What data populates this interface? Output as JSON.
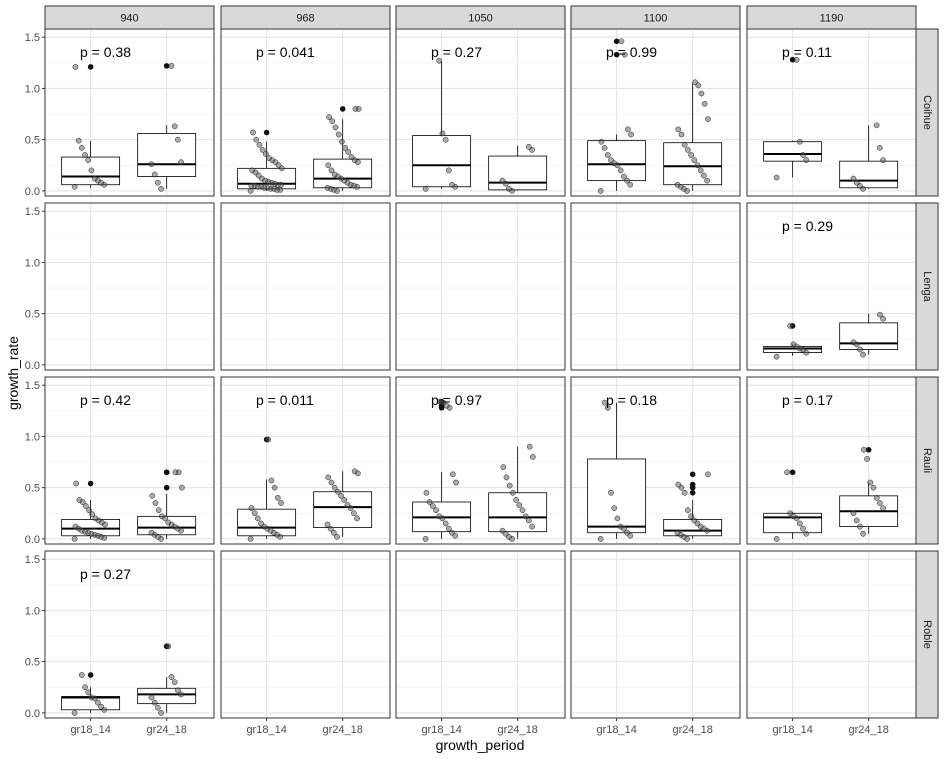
{
  "chart_data": {
    "type": "boxplot",
    "facet_cols": [
      "940",
      "968",
      "1050",
      "1100",
      "1190"
    ],
    "facet_rows": [
      "Coihue",
      "Lenga",
      "Rauli",
      "Roble"
    ],
    "categories": [
      "gr18_14",
      "gr24_18"
    ],
    "xlabel": "growth_period",
    "ylabel": "growth_rate",
    "ylim": [
      -0.05,
      1.58
    ],
    "yticks": [
      0.0,
      0.5,
      1.0,
      1.5
    ],
    "yticklabels": [
      "0.0",
      "0.5",
      "1.0",
      "1.5"
    ],
    "grid": true,
    "colors": {
      "strip": "#d9d9d9",
      "point": "#555555",
      "box": "#000000"
    },
    "panels": [
      {
        "row": "Coihue",
        "col": "940",
        "p": "p = 0.38",
        "boxes": [
          {
            "q1": 0.06,
            "median": 0.14,
            "q3": 0.33,
            "low": 0.03,
            "high": 0.49,
            "outliers": [
              1.21
            ],
            "points": [
              0.04,
              0.06,
              0.08,
              0.1,
              0.12,
              0.2,
              0.3,
              0.35,
              0.42,
              0.49,
              1.21
            ]
          },
          {
            "q1": 0.14,
            "median": 0.26,
            "q3": 0.56,
            "low": 0.02,
            "high": 0.64,
            "outliers": [
              1.22
            ],
            "points": [
              0.02,
              0.08,
              0.16,
              0.26,
              0.28,
              0.5,
              0.63,
              1.22
            ]
          }
        ]
      },
      {
        "row": "Coihue",
        "col": "968",
        "p": "p = 0.041",
        "boxes": [
          {
            "q1": 0.02,
            "median": 0.07,
            "q3": 0.22,
            "low": 0.0,
            "high": 0.48,
            "outliers": [
              0.57
            ],
            "points": [
              0.0,
              0.01,
              0.01,
              0.02,
              0.02,
              0.03,
              0.03,
              0.04,
              0.04,
              0.05,
              0.05,
              0.06,
              0.06,
              0.07,
              0.08,
              0.09,
              0.1,
              0.12,
              0.15,
              0.18,
              0.2,
              0.22,
              0.25,
              0.28,
              0.3,
              0.32,
              0.36,
              0.4,
              0.45,
              0.5,
              0.57
            ]
          },
          {
            "q1": 0.03,
            "median": 0.12,
            "q3": 0.31,
            "low": 0.0,
            "high": 0.7,
            "outliers": [
              0.8
            ],
            "points": [
              0.0,
              0.01,
              0.02,
              0.03,
              0.04,
              0.05,
              0.06,
              0.08,
              0.1,
              0.12,
              0.14,
              0.16,
              0.2,
              0.25,
              0.28,
              0.3,
              0.33,
              0.38,
              0.42,
              0.48,
              0.55,
              0.62,
              0.68,
              0.72,
              0.8,
              0.8
            ]
          }
        ]
      },
      {
        "row": "Coihue",
        "col": "1050",
        "p": "p = 0.27",
        "boxes": [
          {
            "q1": 0.04,
            "median": 0.25,
            "q3": 0.54,
            "low": 0.02,
            "high": 1.27,
            "outliers": [],
            "points": [
              0.02,
              0.04,
              0.06,
              0.2,
              0.5,
              0.56,
              1.27
            ]
          },
          {
            "q1": 0.01,
            "median": 0.08,
            "q3": 0.34,
            "low": 0.0,
            "high": 0.44,
            "outliers": [],
            "points": [
              0.0,
              0.02,
              0.07,
              0.1,
              0.4,
              0.43
            ]
          }
        ]
      },
      {
        "row": "Coihue",
        "col": "1100",
        "p": "p = 0.99",
        "boxes": [
          {
            "q1": 0.1,
            "median": 0.26,
            "q3": 0.49,
            "low": 0.0,
            "high": 0.55,
            "outliers": [
              1.33,
              1.46
            ],
            "points": [
              0.0,
              0.06,
              0.1,
              0.14,
              0.2,
              0.25,
              0.27,
              0.3,
              0.35,
              0.42,
              0.48,
              0.55,
              0.6,
              1.33,
              1.46
            ]
          },
          {
            "q1": 0.06,
            "median": 0.24,
            "q3": 0.47,
            "low": 0.0,
            "high": 1.05,
            "outliers": [],
            "points": [
              0.0,
              0.02,
              0.04,
              0.06,
              0.1,
              0.15,
              0.2,
              0.25,
              0.3,
              0.35,
              0.4,
              0.45,
              0.55,
              0.6,
              0.7,
              0.85,
              0.95,
              1.03,
              1.06
            ]
          }
        ]
      },
      {
        "row": "Coihue",
        "col": "1190",
        "p": "p = 0.11",
        "boxes": [
          {
            "q1": 0.29,
            "median": 0.36,
            "q3": 0.48,
            "low": 0.13,
            "high": 0.49,
            "outliers": [
              1.28
            ],
            "points": [
              0.13,
              0.3,
              0.35,
              0.48,
              1.28
            ]
          },
          {
            "q1": 0.03,
            "median": 0.1,
            "q3": 0.29,
            "low": 0.02,
            "high": 0.64,
            "outliers": [],
            "points": [
              0.02,
              0.05,
              0.08,
              0.12,
              0.3,
              0.42,
              0.64
            ]
          }
        ]
      },
      {
        "row": "Lenga",
        "col": "1190",
        "p": "p = 0.29",
        "boxes": [
          {
            "q1": 0.12,
            "median": 0.16,
            "q3": 0.18,
            "low": 0.09,
            "high": 0.2,
            "outliers": [
              0.38
            ],
            "points": [
              0.08,
              0.12,
              0.15,
              0.16,
              0.18,
              0.2,
              0.38
            ]
          },
          {
            "q1": 0.15,
            "median": 0.21,
            "q3": 0.41,
            "low": 0.1,
            "high": 0.5,
            "outliers": [],
            "points": [
              0.1,
              0.15,
              0.2,
              0.22,
              0.45,
              0.49
            ]
          }
        ]
      },
      {
        "row": "Rauli",
        "col": "940",
        "p": "p = 0.42",
        "boxes": [
          {
            "q1": 0.03,
            "median": 0.1,
            "q3": 0.19,
            "low": 0.0,
            "high": 0.38,
            "outliers": [
              0.54
            ],
            "points": [
              0.0,
              0.01,
              0.02,
              0.03,
              0.04,
              0.05,
              0.06,
              0.07,
              0.08,
              0.1,
              0.12,
              0.14,
              0.16,
              0.18,
              0.2,
              0.24,
              0.28,
              0.32,
              0.36,
              0.38,
              0.54
            ]
          },
          {
            "q1": 0.04,
            "median": 0.11,
            "q3": 0.22,
            "low": 0.0,
            "high": 0.44,
            "outliers": [
              0.5,
              0.65,
              0.65
            ],
            "points": [
              0.0,
              0.02,
              0.04,
              0.06,
              0.08,
              0.1,
              0.12,
              0.14,
              0.16,
              0.2,
              0.22,
              0.28,
              0.35,
              0.42,
              0.5,
              0.65,
              0.65
            ]
          }
        ]
      },
      {
        "row": "Rauli",
        "col": "968",
        "p": "p = 0.011",
        "boxes": [
          {
            "q1": 0.03,
            "median": 0.11,
            "q3": 0.29,
            "low": 0.0,
            "high": 0.58,
            "outliers": [
              0.97
            ],
            "points": [
              0.0,
              0.02,
              0.04,
              0.06,
              0.08,
              0.1,
              0.12,
              0.15,
              0.2,
              0.25,
              0.3,
              0.35,
              0.4,
              0.5,
              0.57,
              0.97
            ]
          },
          {
            "q1": 0.11,
            "median": 0.31,
            "q3": 0.46,
            "low": 0.02,
            "high": 0.66,
            "outliers": [],
            "points": [
              0.02,
              0.06,
              0.1,
              0.14,
              0.2,
              0.25,
              0.3,
              0.33,
              0.38,
              0.42,
              0.46,
              0.5,
              0.55,
              0.6,
              0.64,
              0.66
            ]
          }
        ]
      },
      {
        "row": "Rauli",
        "col": "1050",
        "p": "p = 0.97",
        "boxes": [
          {
            "q1": 0.07,
            "median": 0.21,
            "q3": 0.36,
            "low": 0.0,
            "high": 0.65,
            "outliers": [
              1.28,
              1.3,
              1.33,
              1.34
            ],
            "points": [
              0.0,
              0.03,
              0.06,
              0.1,
              0.15,
              0.2,
              0.22,
              0.28,
              0.32,
              0.36,
              0.45,
              0.55,
              0.63,
              1.28,
              1.3,
              1.33,
              1.34
            ]
          },
          {
            "q1": 0.07,
            "median": 0.21,
            "q3": 0.45,
            "low": 0.0,
            "high": 0.9,
            "outliers": [],
            "points": [
              0.0,
              0.02,
              0.05,
              0.08,
              0.12,
              0.18,
              0.22,
              0.28,
              0.33,
              0.38,
              0.45,
              0.52,
              0.6,
              0.7,
              0.8,
              0.9
            ]
          }
        ]
      },
      {
        "row": "Rauli",
        "col": "1100",
        "p": "p = 0.18",
        "boxes": [
          {
            "q1": 0.06,
            "median": 0.12,
            "q3": 0.78,
            "low": 0.0,
            "high": 1.33,
            "outliers": [],
            "points": [
              0.0,
              0.03,
              0.06,
              0.1,
              0.12,
              0.2,
              0.3,
              0.45,
              1.28,
              1.33
            ]
          },
          {
            "q1": 0.03,
            "median": 0.08,
            "q3": 0.19,
            "low": 0.0,
            "high": 0.38,
            "outliers": [
              0.45,
              0.5,
              0.53,
              0.63
            ],
            "points": [
              0.0,
              0.02,
              0.04,
              0.06,
              0.08,
              0.1,
              0.12,
              0.15,
              0.18,
              0.22,
              0.28,
              0.45,
              0.5,
              0.53,
              0.63
            ]
          }
        ]
      },
      {
        "row": "Rauli",
        "col": "1190",
        "p": "p = 0.17",
        "boxes": [
          {
            "q1": 0.06,
            "median": 0.21,
            "q3": 0.25,
            "low": 0.0,
            "high": 0.26,
            "outliers": [
              0.65
            ],
            "points": [
              0.0,
              0.05,
              0.1,
              0.15,
              0.2,
              0.22,
              0.25,
              0.65
            ]
          },
          {
            "q1": 0.12,
            "median": 0.27,
            "q3": 0.42,
            "low": 0.05,
            "high": 0.55,
            "outliers": [
              0.87
            ],
            "points": [
              0.05,
              0.12,
              0.18,
              0.25,
              0.3,
              0.35,
              0.4,
              0.5,
              0.55,
              0.78,
              0.87
            ]
          }
        ]
      },
      {
        "row": "Roble",
        "col": "940",
        "p": "p = 0.27",
        "boxes": [
          {
            "q1": 0.03,
            "median": 0.15,
            "q3": 0.16,
            "low": 0.0,
            "high": 0.25,
            "outliers": [
              0.37
            ],
            "points": [
              0.0,
              0.03,
              0.06,
              0.1,
              0.14,
              0.15,
              0.2,
              0.25,
              0.37
            ]
          },
          {
            "q1": 0.09,
            "median": 0.18,
            "q3": 0.24,
            "low": 0.0,
            "high": 0.35,
            "outliers": [
              0.65
            ],
            "points": [
              0.0,
              0.05,
              0.1,
              0.15,
              0.18,
              0.22,
              0.3,
              0.35,
              0.65
            ]
          }
        ]
      }
    ]
  }
}
